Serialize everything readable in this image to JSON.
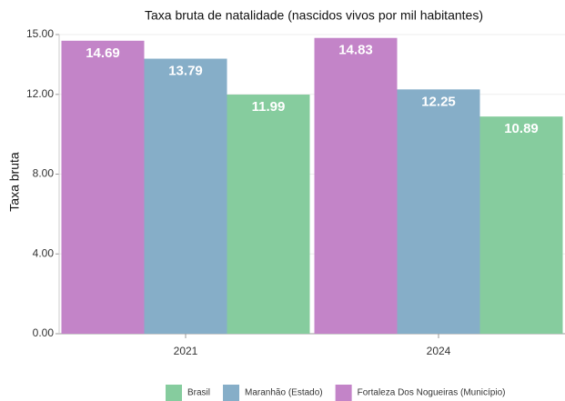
{
  "chart_data": {
    "type": "bar",
    "title": "Taxa bruta de natalidade (nascidos vivos por mil habitantes)",
    "y_label": "Taxa bruta",
    "categories": [
      "2021",
      "2024"
    ],
    "series": [
      {
        "name": "Fortaleza Dos Nogueiras (Município)",
        "color": "#c384c8",
        "values": [
          14.69,
          14.83
        ]
      },
      {
        "name": "Maranhão (Estado)",
        "color": "#86aec8",
        "values": [
          13.79,
          12.25
        ]
      },
      {
        "name": "Brasil",
        "color": "#86cc9e",
        "values": [
          11.99,
          10.89
        ]
      }
    ],
    "ylim": [
      0,
      15
    ],
    "yticks": [
      {
        "value": 0,
        "label": "0.00"
      },
      {
        "value": 4,
        "label": "4.00"
      },
      {
        "value": 8,
        "label": "8.00"
      },
      {
        "value": 12,
        "label": "12.00"
      },
      {
        "value": 15,
        "label": "15.00"
      }
    ]
  }
}
